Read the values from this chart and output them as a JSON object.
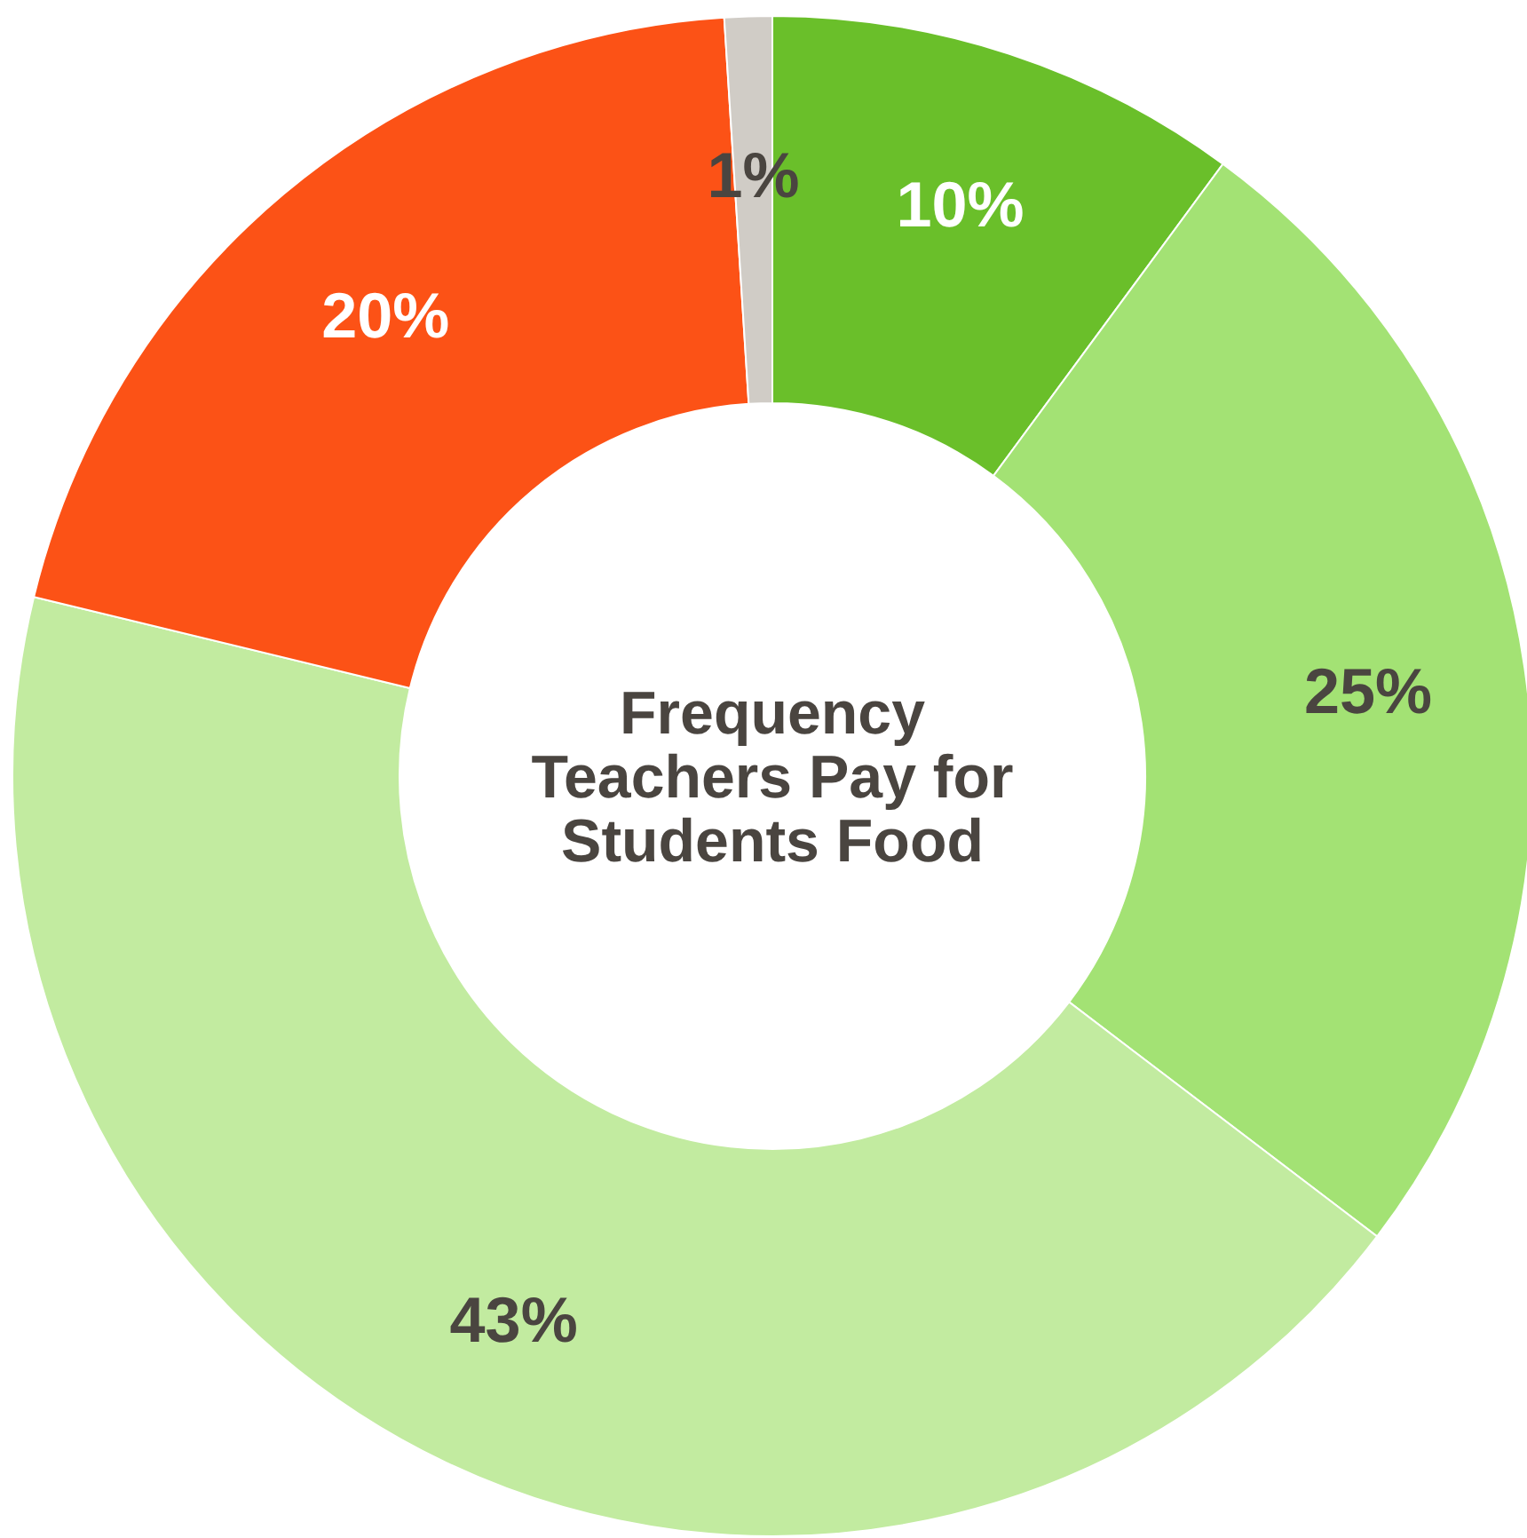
{
  "chart_data": {
    "type": "donut",
    "title": "Frequency Teachers Pay for Students Food",
    "categories": [
      null,
      null,
      null,
      null,
      null
    ],
    "values": [
      10,
      25,
      43,
      20,
      1
    ],
    "colors": [
      "#6abf2a",
      "#a3e274",
      "#c2eba0",
      "#fc5216",
      "#d0ccc6"
    ],
    "value_labels": [
      "10%",
      "25%",
      "43%",
      "20%",
      "1%"
    ]
  }
}
